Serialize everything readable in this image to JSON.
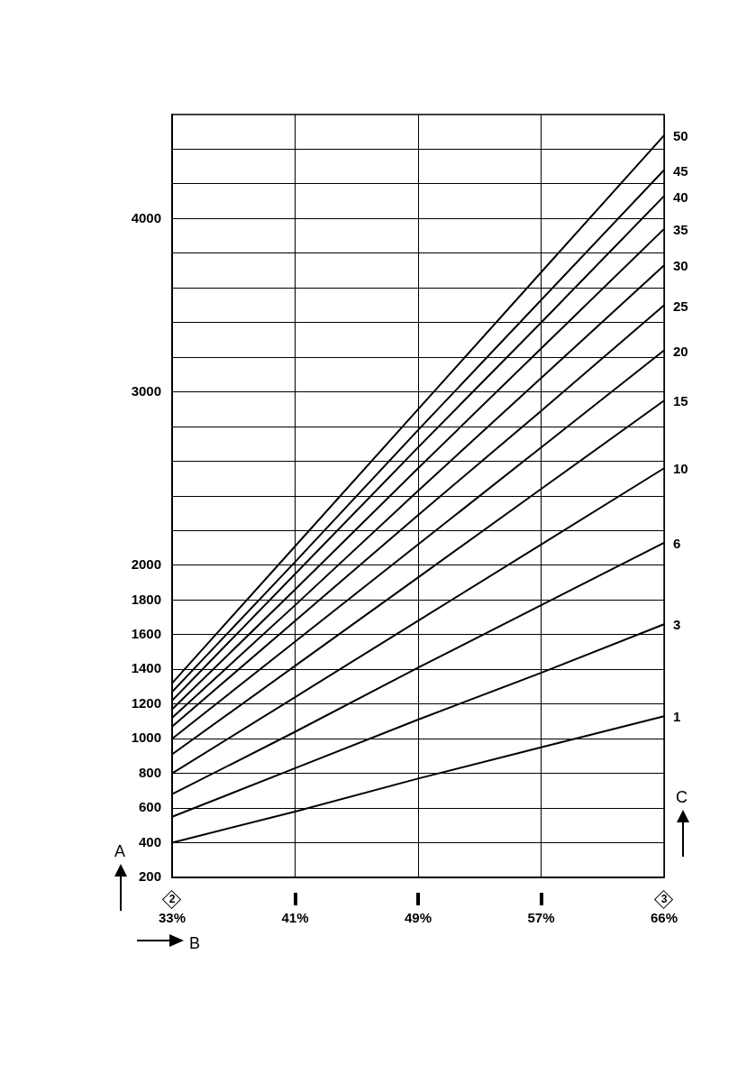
{
  "chart_data": {
    "type": "line",
    "xlabel": "B",
    "ylabel": "A",
    "legend_title": "C",
    "categories": [
      "33%",
      "41%",
      "49%",
      "57%",
      "66%"
    ],
    "ylim": [
      200,
      4600
    ],
    "yticks": [
      200,
      400,
      600,
      800,
      1000,
      1200,
      1400,
      1600,
      1800,
      2000,
      {
        "value": 2200,
        "label": null
      },
      {
        "value": 2400,
        "label": null
      },
      {
        "value": 2600,
        "label": null
      },
      {
        "value": 2800,
        "label": null
      },
      3000,
      {
        "value": 3200,
        "label": null
      },
      {
        "value": 3400,
        "label": null
      },
      {
        "value": 3600,
        "label": null
      },
      {
        "value": 3800,
        "label": null
      },
      4000,
      {
        "value": 4200,
        "label": null
      },
      {
        "value": 4400,
        "label": null
      }
    ],
    "grid": true,
    "marker": "none",
    "line_style": "solid",
    "annotations": [
      "2",
      "3"
    ],
    "series": [
      {
        "name": "1",
        "color": "#000000",
        "values": [
          400,
          580,
          770,
          950,
          1130
        ]
      },
      {
        "name": "3",
        "color": "#000000",
        "values": [
          550,
          830,
          1110,
          1380,
          1660
        ]
      },
      {
        "name": "6",
        "color": "#000000",
        "values": [
          680,
          1040,
          1410,
          1770,
          2130
        ]
      },
      {
        "name": "10",
        "color": "#000000",
        "values": [
          800,
          1240,
          1680,
          2120,
          2560
        ]
      },
      {
        "name": "15",
        "color": "#000000",
        "values": [
          910,
          1420,
          1930,
          2440,
          2950
        ]
      },
      {
        "name": "20",
        "color": "#000000",
        "values": [
          1000,
          1560,
          2120,
          2680,
          3240
        ]
      },
      {
        "name": "25",
        "color": "#000000",
        "values": [
          1070,
          1680,
          2290,
          2890,
          3500
        ]
      },
      {
        "name": "30",
        "color": "#000000",
        "values": [
          1120,
          1770,
          2430,
          3080,
          3730
        ]
      },
      {
        "name": "35",
        "color": "#000000",
        "values": [
          1170,
          1860,
          2560,
          3250,
          3940
        ]
      },
      {
        "name": "40",
        "color": "#000000",
        "values": [
          1220,
          1950,
          2680,
          3400,
          4130
        ]
      },
      {
        "name": "45",
        "color": "#000000",
        "values": [
          1270,
          2020,
          2780,
          3530,
          4280
        ]
      },
      {
        "name": "50",
        "color": "#000000",
        "values": [
          1320,
          2110,
          2900,
          3690,
          4480
        ]
      }
    ]
  }
}
